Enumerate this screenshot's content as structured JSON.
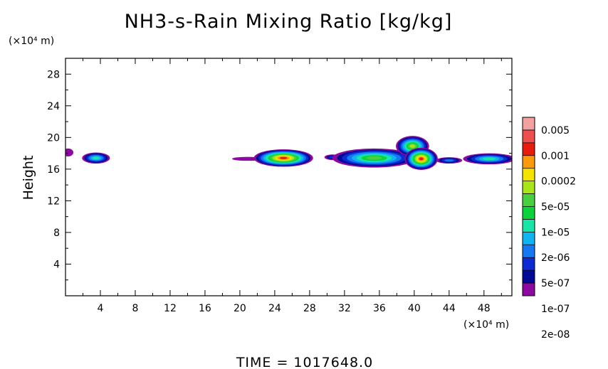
{
  "chart_data": {
    "type": "heatmap",
    "title": "NH3-s-Rain Mixing Ratio [kg/kg]",
    "xlabel": "",
    "ylabel": "Height",
    "x_unit_label": "(×10⁴ m)",
    "y_unit_label": "(×10⁴ m)",
    "xlim": [
      0,
      51.2
    ],
    "ylim": [
      0,
      30
    ],
    "x_ticks": [
      "4",
      "8",
      "12",
      "16",
      "20",
      "24",
      "28",
      "32",
      "36",
      "40",
      "44",
      "48"
    ],
    "y_ticks": [
      "4",
      "8",
      "12",
      "16",
      "20",
      "24",
      "28"
    ],
    "colorbar": {
      "labels": [
        "0.005",
        "0.001",
        "0.0002",
        "5e-05",
        "1e-05",
        "2e-06",
        "5e-07",
        "1e-07",
        "2e-08"
      ],
      "colors": [
        "#f2a0a0",
        "#ee5050",
        "#e81c0c",
        "#fb9a0a",
        "#f4e400",
        "#a8e61a",
        "#48d040",
        "#0cd23c",
        "#18e6a8",
        "#10b4f0",
        "#1478f0",
        "#0c2cd2",
        "#000a96",
        "#8c0aa0"
      ]
    },
    "features": [
      {
        "x": 0.3,
        "y": 18.1,
        "dx": 0.6,
        "dy": 0.5,
        "peak": 1
      },
      {
        "x": 3.5,
        "y": 17.4,
        "dx": 1.6,
        "dy": 0.7,
        "peak": 6
      },
      {
        "x": 20.9,
        "y": 17.3,
        "dx": 1.8,
        "dy": 0.25,
        "peak": 1
      },
      {
        "x": 25.0,
        "y": 17.4,
        "dx": 3.4,
        "dy": 1.1,
        "peak": 12
      },
      {
        "x": 30.6,
        "y": 17.5,
        "dx": 0.9,
        "dy": 0.35,
        "peak": 3
      },
      {
        "x": 35.4,
        "y": 17.4,
        "dx": 4.8,
        "dy": 1.2,
        "peak": 8
      },
      {
        "x": 39.8,
        "y": 18.9,
        "dx": 1.9,
        "dy": 1.3,
        "peak": 9
      },
      {
        "x": 40.8,
        "y": 17.3,
        "dx": 1.9,
        "dy": 1.4,
        "peak": 12
      },
      {
        "x": 44.0,
        "y": 17.1,
        "dx": 1.5,
        "dy": 0.4,
        "peak": 4
      },
      {
        "x": 48.6,
        "y": 17.3,
        "dx": 3.0,
        "dy": 0.7,
        "peak": 6
      }
    ],
    "time_text": "TIME  =  1017648.0"
  }
}
